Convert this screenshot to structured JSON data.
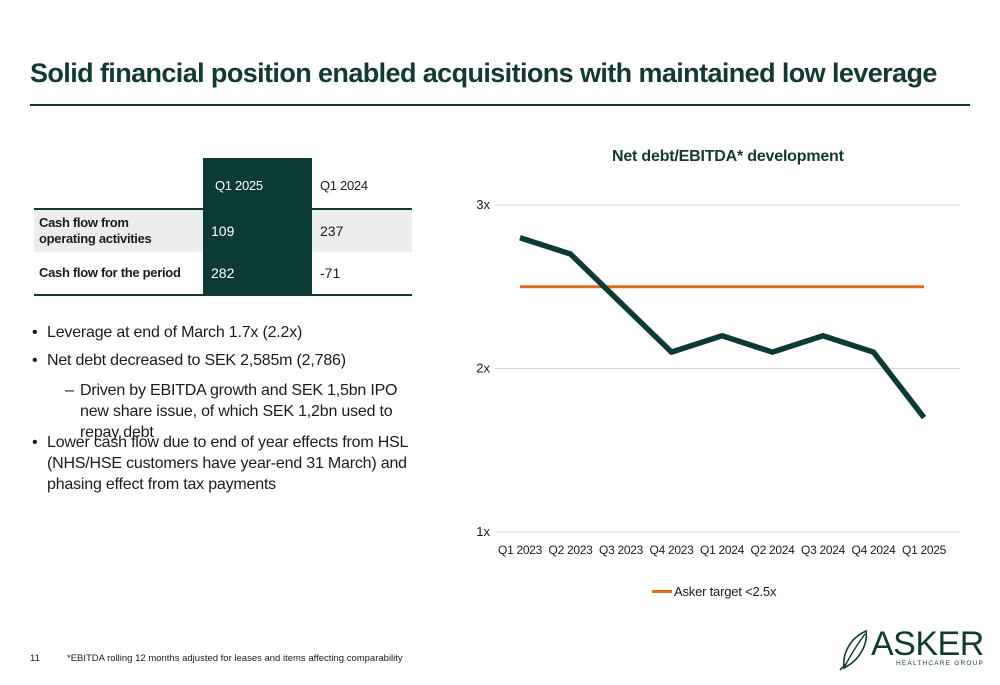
{
  "header": {
    "title": "Solid financial position enabled acquisitions with maintained low leverage"
  },
  "table": {
    "columns": [
      "Q1 2025",
      "Q1 2024"
    ],
    "rows": [
      {
        "label_line1": "Cash flow from",
        "label_line2": "operating activities",
        "q1_2025": "109",
        "q1_2024": "237"
      },
      {
        "label": "Cash flow for the period",
        "q1_2025": "282",
        "q1_2024": "-71"
      }
    ]
  },
  "bullets": {
    "b1": "Leverage at end of March 1.7x (2.2x)",
    "b2": "Net debt decreased to SEK 2,585m (2,786)",
    "b2_sub": "Driven by EBITDA growth and SEK 1,5bn IPO new share issue, of which SEK 1,2bn used to repay debt",
    "b3": "Lower cash flow due to end of year effects from HSL (NHS/HSE customers have year-end 31 March) and phasing effect from tax payments",
    "bullet_glyph": "•",
    "dash_glyph": "–"
  },
  "chart_data": {
    "type": "line",
    "title": "Net debt/EBITDA* development",
    "categories": [
      "Q1 2023",
      "Q2 2023",
      "Q3 2023",
      "Q4 2023",
      "Q1 2024",
      "Q2 2024",
      "Q3 2024",
      "Q4 2024",
      "Q1 2025"
    ],
    "series": [
      {
        "values": [
          2.8,
          2.7,
          2.4,
          2.1,
          2.2,
          2.1,
          2.2,
          2.1,
          1.7
        ],
        "color": "#0c3a34"
      },
      {
        "name": "Asker target <2.5x",
        "values": [
          2.5,
          2.5,
          2.5,
          2.5,
          2.5,
          2.5,
          2.5,
          2.5,
          2.5
        ],
        "color": "#e06a1f"
      }
    ],
    "yticks": [
      {
        "value": 1,
        "label": "1x"
      },
      {
        "value": 2,
        "label": "2x"
      },
      {
        "value": 3,
        "label": "3x"
      }
    ],
    "ylim": [
      1,
      3
    ],
    "grid": true,
    "legend_position": "bottom-center"
  },
  "legend": {
    "label": "Asker target <2.5x"
  },
  "footer": {
    "page_number": "11",
    "footnote": "*EBITDA rolling 12 months adjusted for leases and items affecting comparability"
  },
  "logo": {
    "word": "ASKER",
    "sub": "HEALTHCARE GROUP"
  }
}
